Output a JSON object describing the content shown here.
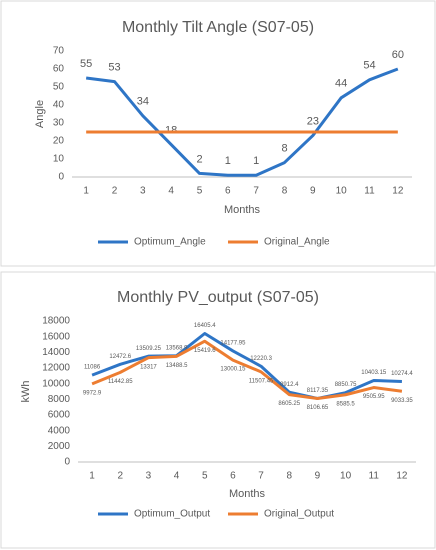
{
  "chart_data": [
    {
      "type": "line",
      "title": "Monthly Tilt Angle (S07-05)",
      "xlabel": "Months",
      "ylabel": "Angle",
      "x": [
        1,
        2,
        3,
        4,
        5,
        6,
        7,
        8,
        9,
        10,
        11,
        12
      ],
      "series": [
        {
          "name": "Optimum_Angle",
          "color": "#2e75c6",
          "values": [
            55,
            53,
            34,
            18,
            2,
            1,
            1,
            8,
            23,
            44,
            54,
            60
          ],
          "data_labels": true
        },
        {
          "name": "Original_Angle",
          "color": "#ed7d31",
          "values": [
            25,
            25,
            25,
            25,
            25,
            25,
            25,
            25,
            25,
            25,
            25,
            25
          ],
          "data_labels": false
        }
      ],
      "ylim": [
        0,
        70
      ],
      "yticks": [
        0,
        10,
        20,
        30,
        40,
        50,
        60,
        70
      ],
      "grid": false,
      "legend": "bottom"
    },
    {
      "type": "line",
      "title": "Monthly PV_output (S07-05)",
      "xlabel": "Months",
      "ylabel": "kWh",
      "x": [
        1,
        2,
        3,
        4,
        5,
        6,
        7,
        8,
        9,
        10,
        11,
        12
      ],
      "series": [
        {
          "name": "Optimum_Output",
          "color": "#2e75c6",
          "values": [
            11086,
            12472.6,
            13509.25,
            13568.9,
            16405.4,
            14177.95,
            12220.3,
            8912.4,
            8117.35,
            8850.75,
            10403.15,
            10274.4
          ],
          "data_labels": true
        },
        {
          "name": "Original_Output",
          "color": "#ed7d31",
          "values": [
            9972.9,
            11442.85,
            13317,
            13488.5,
            15419.6,
            13000.15,
            11507.45,
            8605.25,
            8106.65,
            8585.5,
            9505.95,
            9033.35
          ],
          "data_labels": true
        }
      ],
      "ylim": [
        0,
        18000
      ],
      "yticks": [
        0,
        2000,
        4000,
        6000,
        8000,
        10000,
        12000,
        14000,
        16000,
        18000
      ],
      "grid": false,
      "legend": "bottom"
    }
  ]
}
